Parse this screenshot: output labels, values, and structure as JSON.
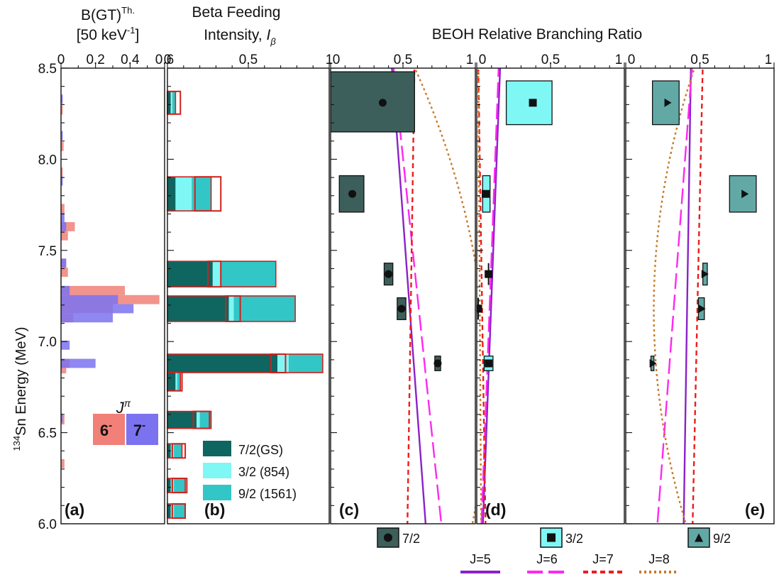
{
  "chart_data": {
    "type": "bar",
    "y_axis": {
      "label_pre": "134",
      "label_main": "Sn Energy (MeV)",
      "range": [
        6.0,
        8.5
      ],
      "ticks": [
        "6.0",
        "6.5",
        "7.0",
        "7.5",
        "8.0",
        "8.5"
      ]
    },
    "panel_a": {
      "title_line1": "B(GT)",
      "title_sup": "Th.",
      "title_line2": "[50 keV",
      "title_line2_sup": "-1",
      "title_line2_end": "]",
      "xlim": [
        0,
        0.6
      ],
      "xticks": [
        "0",
        "0.2",
        "0.4",
        "0.6"
      ],
      "label": "(a)",
      "jpi_label": "J",
      "jpi_sup": "π",
      "series": [
        {
          "name": "6-",
          "sign": "-",
          "color": "#f08078",
          "bins": [
            [
              6.33,
              0.02
            ],
            [
              6.57,
              0.02
            ],
            [
              6.85,
              0.03
            ],
            [
              6.88,
              0.05
            ],
            [
              7.13,
              0.07
            ],
            [
              7.18,
              0.3
            ],
            [
              7.23,
              0.57
            ],
            [
              7.28,
              0.37
            ],
            [
              7.38,
              0.04
            ],
            [
              7.43,
              0.03
            ],
            [
              7.58,
              0.04
            ],
            [
              7.63,
              0.08
            ],
            [
              7.73,
              0.02
            ],
            [
              7.93,
              0.01
            ],
            [
              8.07,
              0.015
            ],
            [
              8.27,
              0.01
            ]
          ]
        },
        {
          "name": "7-",
          "sign": "-",
          "color": "#7b72f0",
          "bins": [
            [
              6.58,
              0.01
            ],
            [
              6.88,
              0.2
            ],
            [
              6.98,
              0.05
            ],
            [
              7.13,
              0.3
            ],
            [
              7.18,
              0.42
            ],
            [
              7.23,
              0.33
            ],
            [
              7.28,
              0.05
            ],
            [
              7.43,
              0.03
            ],
            [
              7.63,
              0.03
            ],
            [
              7.68,
              0.02
            ],
            [
              7.88,
              0.01
            ],
            [
              8.13,
              0.01
            ],
            [
              8.33,
              0.01
            ]
          ]
        }
      ]
    },
    "panel_b": {
      "title_line1": "Beta Feeding",
      "title_line2": "Intensity, ",
      "title_sym": "I",
      "title_sub": "β",
      "xlim": [
        0,
        1
      ],
      "xticks": [
        "0",
        "0.5",
        "1"
      ],
      "label": "(b)",
      "legend": [
        {
          "label": "7/2(GS)",
          "color": "#0f6560"
        },
        {
          "label": "3/2 (854)",
          "color": "#7ff7f5"
        },
        {
          "label": "9/2 (1561)",
          "color": "#33c6c6"
        }
      ],
      "bars": [
        {
          "e": 8.31,
          "gs": 0.02,
          "s32": 0.01,
          "s92": 0.02,
          "red": [
            0,
            0.08
          ]
        },
        {
          "e": 7.81,
          "gs": 0.05,
          "s32": 0.1,
          "s92": 0.12,
          "red": [
            0.17,
            0.33
          ]
        },
        {
          "e": 7.37,
          "gs": 0.28,
          "s32": 0.05,
          "s92": 0.34,
          "red": [
            0.25,
            0.33
          ]
        },
        {
          "e": 7.18,
          "gs": 0.38,
          "s32": 0.03,
          "s92": 0.38,
          "red": [
            0.36,
            0.45
          ]
        },
        {
          "e": 6.88,
          "gs": 0.68,
          "s32": 0.07,
          "s92": 0.21,
          "red": [
            0.64,
            0.73
          ]
        },
        {
          "e": 6.78,
          "gs": 0.05,
          "s32": 0.01,
          "s92": 0.02,
          "red": [
            0,
            0.09
          ]
        },
        {
          "e": 6.57,
          "gs": 0.18,
          "s32": 0.02,
          "s92": 0.07,
          "red": [
            0.16,
            0.26
          ]
        },
        {
          "e": 6.4,
          "gs": 0.02,
          "s32": 0.02,
          "s92": 0.05,
          "red": [
            0.03,
            0.11
          ]
        },
        {
          "e": 6.21,
          "gs": 0.02,
          "s32": 0.02,
          "s92": 0.07,
          "red": [
            0.03,
            0.12
          ]
        },
        {
          "e": 6.07,
          "gs": 0.02,
          "s32": 0.02,
          "s92": 0.07,
          "red": [
            0.03,
            0.11
          ]
        }
      ]
    },
    "beoh": {
      "title": "BEOH Relative Branching Ratio",
      "xlim": [
        0,
        1
      ],
      "xticks": [
        "0",
        "0.5",
        "1"
      ],
      "curve_legend": [
        {
          "label": "J=5",
          "color": "#8a22c8",
          "dash": "solid"
        },
        {
          "label": "J=6",
          "color": "#ff28f0",
          "dash": "long"
        },
        {
          "label": "J=7",
          "color": "#ee1c1c",
          "dash": "short"
        },
        {
          "label": "J=8",
          "color": "#c87a2a",
          "dash": "dot"
        }
      ],
      "panels": [
        {
          "label": "(c)",
          "state": "7/2",
          "fill": "#3d5f5c",
          "marker": "circle",
          "points": [
            {
              "e": 8.31,
              "x": 0.36,
              "xlo": 0.0,
              "xhi": 0.58,
              "elo": 8.15,
              "ehi": 8.48
            },
            {
              "e": 7.81,
              "x": 0.15,
              "xlo": 0.06,
              "xhi": 0.23,
              "elo": 7.71,
              "ehi": 7.91
            },
            {
              "e": 7.37,
              "x": 0.4,
              "xlo": 0.37,
              "xhi": 0.43,
              "elo": 7.31,
              "ehi": 7.43
            },
            {
              "e": 7.18,
              "x": 0.49,
              "xlo": 0.46,
              "xhi": 0.52,
              "elo": 7.12,
              "ehi": 7.24
            },
            {
              "e": 6.88,
              "x": 0.74,
              "xlo": 0.72,
              "xhi": 0.76,
              "elo": 6.84,
              "ehi": 6.92
            }
          ],
          "curves": [
            {
              "c": "J=5",
              "top": 0.42,
              "bot": 0.66
            },
            {
              "c": "J=6",
              "top": 0.43,
              "bot": 0.77
            },
            {
              "c": "J=7",
              "top": 0.58,
              "bot": 0.53
            },
            {
              "c": "J=8",
              "top": 0.56,
              "bot": 0.97,
              "bulge": 0.27
            }
          ]
        },
        {
          "label": "(d)",
          "state": "3/2",
          "fill": "#7ff7f5",
          "marker": "square",
          "points": [
            {
              "e": 8.31,
              "x": 0.38,
              "xlo": 0.2,
              "xhi": 0.51,
              "elo": 8.19,
              "ehi": 8.43
            },
            {
              "e": 7.81,
              "x": 0.06,
              "xlo": 0.04,
              "xhi": 0.09,
              "elo": 7.71,
              "ehi": 7.91
            },
            {
              "e": 7.37,
              "x": 0.08,
              "xlo": 0.08,
              "xhi": 0.08,
              "elo": 7.31,
              "ehi": 7.43
            },
            {
              "e": 7.18,
              "x": 0.01,
              "xlo": 0.01,
              "xhi": 0.01,
              "elo": 7.12,
              "ehi": 7.24
            },
            {
              "e": 6.88,
              "x": 0.08,
              "xlo": 0.05,
              "xhi": 0.11,
              "elo": 6.84,
              "ehi": 6.92
            }
          ],
          "curves": [
            {
              "c": "J=5",
              "top": 0.16,
              "bot": 0.04
            },
            {
              "c": "J=6",
              "top": 0.15,
              "bot": 0.03
            },
            {
              "c": "J=7",
              "top": 0.01,
              "bot": 0.06
            },
            {
              "c": "J=8",
              "top": 0.01,
              "bot": 0.03
            }
          ]
        },
        {
          "label": "(e)",
          "state": "9/2",
          "fill": "#62a9a6",
          "marker": "triangle",
          "points": [
            {
              "e": 8.31,
              "x": 0.28,
              "xlo": 0.18,
              "xhi": 0.36,
              "elo": 8.19,
              "ehi": 8.43
            },
            {
              "e": 7.81,
              "x": 0.8,
              "xlo": 0.7,
              "xhi": 0.88,
              "elo": 7.71,
              "ehi": 7.91
            },
            {
              "e": 7.37,
              "x": 0.53,
              "xlo": 0.52,
              "xhi": 0.55,
              "elo": 7.31,
              "ehi": 7.43
            },
            {
              "e": 7.18,
              "x": 0.51,
              "xlo": 0.49,
              "xhi": 0.53,
              "elo": 7.12,
              "ehi": 7.24
            },
            {
              "e": 6.88,
              "x": 0.18,
              "xlo": 0.17,
              "xhi": 0.19,
              "elo": 6.84,
              "ehi": 6.92
            }
          ],
          "curves": [
            {
              "c": "J=5",
              "top": 0.44,
              "bot": 0.39
            },
            {
              "c": "J=6",
              "top": 0.45,
              "bot": 0.21
            },
            {
              "c": "J=7",
              "top": 0.52,
              "bot": 0.45
            },
            {
              "c": "J=8",
              "top": 0.48,
              "bot": 0.42,
              "bulge": -0.26
            }
          ]
        }
      ]
    }
  }
}
